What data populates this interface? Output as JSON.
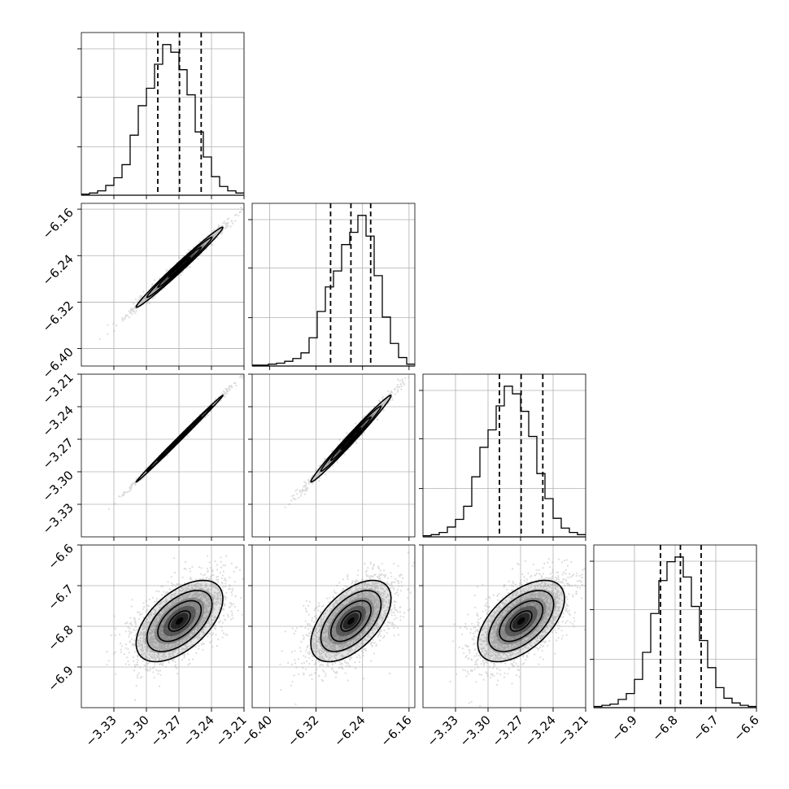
{
  "chart_data": {
    "type": "corner",
    "n_params": 4,
    "grid": true,
    "colors": {
      "line": "#000000",
      "grid": "#b0b0b0",
      "scatter": "#9a9a9a",
      "density": "#000000"
    },
    "params": [
      {
        "index": 0,
        "range": [
          -3.36,
          -3.21
        ],
        "ticks": [
          -3.33,
          -3.3,
          -3.27,
          -3.24,
          -3.21
        ],
        "tick_labels": [
          "−3.33",
          "−3.30",
          "−3.27",
          "−3.24",
          "−3.21"
        ],
        "median": -3.2695,
        "q16": -3.2895,
        "q84": -3.2495
      },
      {
        "index": 1,
        "range": [
          -6.43,
          -6.15
        ],
        "ticks": [
          -6.4,
          -6.32,
          -6.24,
          -6.16
        ],
        "tick_labels": [
          "−6.40",
          "−6.32",
          "−6.24",
          "−6.16"
        ],
        "median": -6.26,
        "q16": -6.295,
        "q84": -6.226
      },
      {
        "index": 2,
        "range": [
          -3.36,
          -3.21
        ],
        "ticks": [
          -3.33,
          -3.3,
          -3.27,
          -3.24,
          -3.21
        ],
        "tick_labels": [
          "−3.33",
          "−3.30",
          "−3.27",
          "−3.24",
          "−3.21"
        ],
        "median": -3.2695,
        "q16": -3.2895,
        "q84": -3.2495
      },
      {
        "index": 3,
        "range": [
          -7.0,
          -6.6
        ],
        "ticks": [
          -6.9,
          -6.8,
          -6.7,
          -6.6
        ],
        "tick_labels": [
          "−6.9",
          "−6.8",
          "−6.7",
          "−6.6"
        ],
        "median": -6.787,
        "q16": -6.836,
        "q84": -6.736
      }
    ],
    "histogram_counts": [
      [
        1,
        2,
        4,
        9,
        16,
        28,
        55,
        82,
        98,
        120,
        138,
        131,
        115,
        92,
        58,
        35,
        17,
        8,
        4,
        2
      ],
      [
        1,
        1,
        2,
        3,
        5,
        8,
        14,
        30,
        58,
        84,
        101,
        129,
        142,
        160,
        138,
        96,
        52,
        24,
        9,
        2
      ],
      [
        1,
        2,
        4,
        9,
        16,
        28,
        55,
        82,
        98,
        120,
        138,
        131,
        115,
        92,
        58,
        35,
        17,
        8,
        4,
        2
      ],
      [
        1,
        2,
        3,
        7,
        12,
        24,
        47,
        80,
        108,
        124,
        128,
        111,
        86,
        57,
        34,
        17,
        8,
        4,
        2,
        1
      ]
    ],
    "pairs": [
      {
        "x": 0,
        "y": 1,
        "correlation": 0.99
      },
      {
        "x": 0,
        "y": 2,
        "correlation": 0.998
      },
      {
        "x": 1,
        "y": 2,
        "correlation": 0.99
      },
      {
        "x": 0,
        "y": 3,
        "correlation": 0.55
      },
      {
        "x": 1,
        "y": 3,
        "correlation": 0.55
      },
      {
        "x": 2,
        "y": 3,
        "correlation": 0.55
      }
    ]
  }
}
